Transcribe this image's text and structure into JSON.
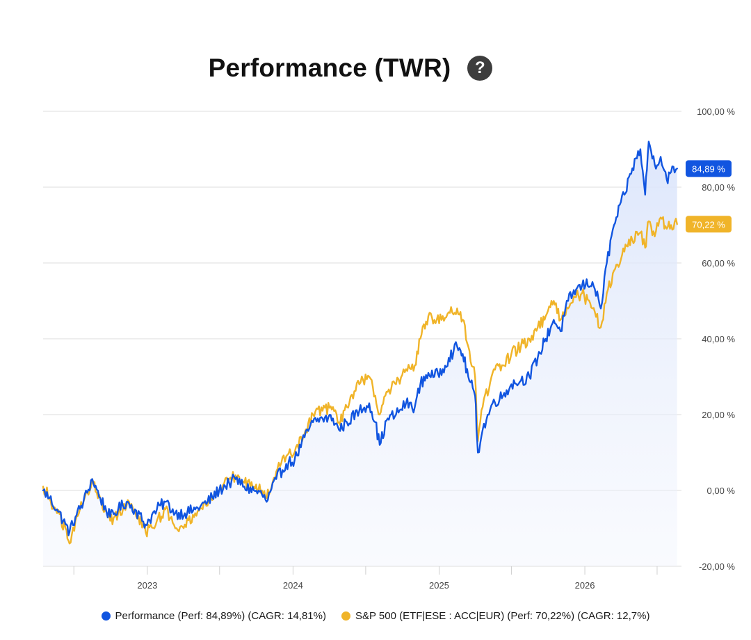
{
  "header": {
    "title": "Performance (TWR)",
    "help_icon": "question-mark-icon",
    "help_glyph": "?"
  },
  "colors": {
    "performance": "#1155e0",
    "benchmark": "#f0b429",
    "grid": "#dedede",
    "area_fill": "#e9effc"
  },
  "chart_data": {
    "type": "line",
    "title": "Performance (TWR)",
    "xlabel": "",
    "ylabel": "",
    "x_ticks": [
      "2023",
      "2024",
      "2025",
      "2026"
    ],
    "y_ticks": [
      "100,00 %",
      "80,00 %",
      "60,00 %",
      "40,00 %",
      "20,00 %",
      "0,00 %",
      "-20,00 %"
    ],
    "y_tick_values": [
      100,
      80,
      60,
      40,
      20,
      0,
      -20
    ],
    "ylim": [
      -20,
      100
    ],
    "xlim": [
      "2022-04-15",
      "2026-08-31"
    ],
    "grid": true,
    "legend_position": "bottom",
    "series": [
      {
        "name": "Performance",
        "legend_label": "Performance (Perf: 84,89%) (CAGR: 14,81%)",
        "last_value_label": "84,89 %",
        "last_value": 84.89,
        "area_fill": true,
        "points": [
          [
            "2022-04-15",
            0
          ],
          [
            "2022-05-01",
            -2
          ],
          [
            "2022-05-20",
            -5
          ],
          [
            "2022-06-10",
            -9
          ],
          [
            "2022-06-20",
            -11
          ],
          [
            "2022-07-05",
            -7
          ],
          [
            "2022-07-25",
            -3
          ],
          [
            "2022-08-16",
            3
          ],
          [
            "2022-09-05",
            -2
          ],
          [
            "2022-09-30",
            -7
          ],
          [
            "2022-10-20",
            -5
          ],
          [
            "2022-11-10",
            -3
          ],
          [
            "2022-12-01",
            -5
          ],
          [
            "2022-12-28",
            -9
          ],
          [
            "2023-01-25",
            -5
          ],
          [
            "2023-02-15",
            -3
          ],
          [
            "2023-03-12",
            -6
          ],
          [
            "2023-04-05",
            -6
          ],
          [
            "2023-05-01",
            -5
          ],
          [
            "2023-06-01",
            -3
          ],
          [
            "2023-06-30",
            0
          ],
          [
            "2023-07-25",
            2
          ],
          [
            "2023-08-10",
            3
          ],
          [
            "2023-09-01",
            1
          ],
          [
            "2023-09-25",
            0
          ],
          [
            "2023-10-15",
            -1
          ],
          [
            "2023-10-27",
            -3
          ],
          [
            "2023-11-20",
            3
          ],
          [
            "2023-12-15",
            7
          ],
          [
            "2024-01-05",
            8
          ],
          [
            "2024-01-30",
            14
          ],
          [
            "2024-02-20",
            18
          ],
          [
            "2024-03-15",
            19
          ],
          [
            "2024-04-10",
            19
          ],
          [
            "2024-04-25",
            16
          ],
          [
            "2024-05-15",
            18
          ],
          [
            "2024-06-15",
            21
          ],
          [
            "2024-07-10",
            23
          ],
          [
            "2024-07-25",
            18
          ],
          [
            "2024-08-05",
            12
          ],
          [
            "2024-08-25",
            19
          ],
          [
            "2024-09-15",
            20
          ],
          [
            "2024-10-10",
            23
          ],
          [
            "2024-11-01",
            22
          ],
          [
            "2024-11-15",
            28
          ],
          [
            "2024-12-05",
            31
          ],
          [
            "2024-12-20",
            30
          ],
          [
            "2025-01-10",
            32
          ],
          [
            "2025-01-25",
            35
          ],
          [
            "2025-02-15",
            38
          ],
          [
            "2025-03-01",
            36
          ],
          [
            "2025-03-15",
            30
          ],
          [
            "2025-04-01",
            25
          ],
          [
            "2025-04-08",
            10
          ],
          [
            "2025-04-20",
            16
          ],
          [
            "2025-05-15",
            23
          ],
          [
            "2025-06-10",
            25
          ],
          [
            "2025-07-01",
            28
          ],
          [
            "2025-07-25",
            29
          ],
          [
            "2025-08-15",
            30
          ],
          [
            "2025-09-05",
            35
          ],
          [
            "2025-09-25",
            40
          ],
          [
            "2025-10-15",
            45
          ],
          [
            "2025-11-01",
            42
          ],
          [
            "2025-11-20",
            50
          ],
          [
            "2025-12-10",
            53
          ],
          [
            "2025-12-25",
            54
          ],
          [
            "2026-01-20",
            55
          ],
          [
            "2026-02-10",
            48
          ],
          [
            "2026-02-25",
            60
          ],
          [
            "2026-03-15",
            70
          ],
          [
            "2026-04-10",
            78
          ],
          [
            "2026-04-30",
            85
          ],
          [
            "2026-05-20",
            90
          ],
          [
            "2026-06-01",
            78
          ],
          [
            "2026-06-10",
            92
          ],
          [
            "2026-06-25",
            86
          ],
          [
            "2026-07-10",
            88
          ],
          [
            "2026-07-25",
            82
          ],
          [
            "2026-08-05",
            84
          ],
          [
            "2026-08-20",
            84.89
          ]
        ]
      },
      {
        "name": "S&P 500 (ETF|ESE : ACC|EUR)",
        "legend_label": "S&P 500 (ETF|ESE : ACC|EUR) (Perf: 70,22%) (CAGR: 12,7%)",
        "last_value_label": "70,22 %",
        "last_value": 70.22,
        "area_fill": false,
        "points": [
          [
            "2022-04-15",
            1
          ],
          [
            "2022-05-01",
            -2
          ],
          [
            "2022-05-20",
            -6
          ],
          [
            "2022-06-10",
            -10
          ],
          [
            "2022-06-20",
            -14
          ],
          [
            "2022-07-05",
            -8
          ],
          [
            "2022-07-25",
            -3
          ],
          [
            "2022-08-16",
            3
          ],
          [
            "2022-09-05",
            -2
          ],
          [
            "2022-09-30",
            -8
          ],
          [
            "2022-10-20",
            -6
          ],
          [
            "2022-11-10",
            -4
          ],
          [
            "2022-12-01",
            -5
          ],
          [
            "2022-12-28",
            -11
          ],
          [
            "2023-01-25",
            -8
          ],
          [
            "2023-02-15",
            -5
          ],
          [
            "2023-03-12",
            -10
          ],
          [
            "2023-04-05",
            -9
          ],
          [
            "2023-05-01",
            -6
          ],
          [
            "2023-06-01",
            -4
          ],
          [
            "2023-06-30",
            0
          ],
          [
            "2023-07-25",
            3
          ],
          [
            "2023-08-10",
            4
          ],
          [
            "2023-09-01",
            2
          ],
          [
            "2023-09-25",
            1
          ],
          [
            "2023-10-15",
            0
          ],
          [
            "2023-10-27",
            -2
          ],
          [
            "2023-11-20",
            5
          ],
          [
            "2023-12-15",
            9
          ],
          [
            "2024-01-05",
            10
          ],
          [
            "2024-01-30",
            15
          ],
          [
            "2024-02-20",
            20
          ],
          [
            "2024-03-15",
            21
          ],
          [
            "2024-04-10",
            22
          ],
          [
            "2024-04-25",
            18
          ],
          [
            "2024-05-15",
            22
          ],
          [
            "2024-06-15",
            28
          ],
          [
            "2024-07-10",
            30
          ],
          [
            "2024-07-25",
            25
          ],
          [
            "2024-08-05",
            20
          ],
          [
            "2024-08-25",
            26
          ],
          [
            "2024-09-15",
            28
          ],
          [
            "2024-10-10",
            32
          ],
          [
            "2024-11-01",
            33
          ],
          [
            "2024-11-15",
            40
          ],
          [
            "2024-12-05",
            46
          ],
          [
            "2024-12-20",
            45
          ],
          [
            "2025-01-10",
            46
          ],
          [
            "2025-01-25",
            47
          ],
          [
            "2025-02-15",
            48
          ],
          [
            "2025-03-01",
            45
          ],
          [
            "2025-03-15",
            38
          ],
          [
            "2025-04-01",
            30
          ],
          [
            "2025-04-08",
            13
          ],
          [
            "2025-04-20",
            22
          ],
          [
            "2025-05-15",
            31
          ],
          [
            "2025-06-10",
            33
          ],
          [
            "2025-07-01",
            36
          ],
          [
            "2025-07-25",
            38
          ],
          [
            "2025-08-15",
            40
          ],
          [
            "2025-09-05",
            43
          ],
          [
            "2025-09-25",
            46
          ],
          [
            "2025-10-15",
            50
          ],
          [
            "2025-11-01",
            45
          ],
          [
            "2025-11-20",
            48
          ],
          [
            "2025-12-10",
            51
          ],
          [
            "2025-12-25",
            52
          ],
          [
            "2026-01-20",
            48
          ],
          [
            "2026-02-10",
            43
          ],
          [
            "2026-02-25",
            52
          ],
          [
            "2026-03-15",
            58
          ],
          [
            "2026-04-10",
            63
          ],
          [
            "2026-04-30",
            66
          ],
          [
            "2026-05-20",
            68
          ],
          [
            "2026-06-01",
            64
          ],
          [
            "2026-06-10",
            71
          ],
          [
            "2026-06-25",
            67
          ],
          [
            "2026-07-10",
            72
          ],
          [
            "2026-07-25",
            69
          ],
          [
            "2026-08-05",
            70
          ],
          [
            "2026-08-20",
            70.22
          ]
        ]
      }
    ]
  }
}
